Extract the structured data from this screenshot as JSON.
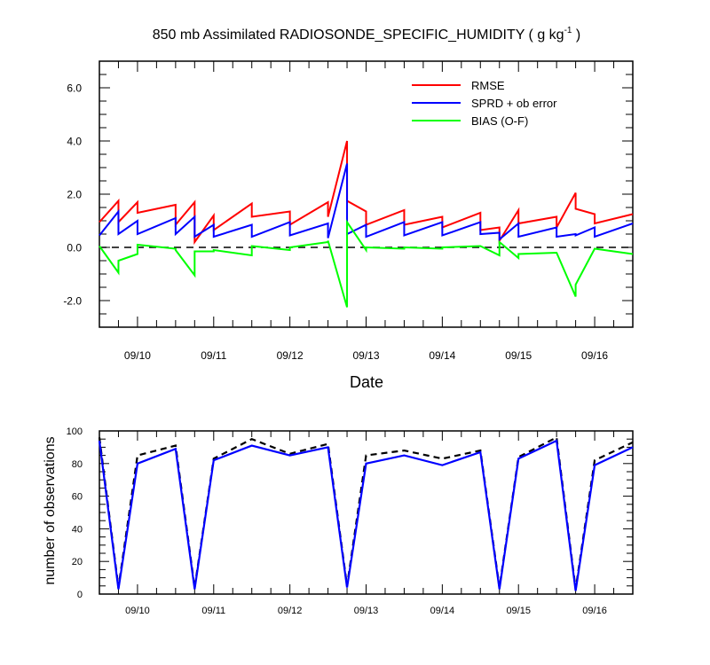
{
  "chart_data": [
    {
      "type": "line",
      "title": "850 mb Assimilated RADIOSONDE_SPECIFIC_HUMIDITY ( g kg",
      "title_units_superscript": "-1",
      "title_suffix": " )",
      "xlabel": "Date",
      "ylabel": "",
      "ylim": [
        -3,
        7
      ],
      "xlim": [
        9.5,
        16.5
      ],
      "x_tick_labels": [
        "09/10",
        "09/11",
        "09/12",
        "09/13",
        "09/14",
        "09/15",
        "09/16"
      ],
      "y_tick_labels": [
        "-2.0",
        "0.0",
        "2.0",
        "4.0",
        "6.0"
      ],
      "y_ticks": [
        -2,
        0,
        2,
        4,
        6
      ],
      "zero_line": "dashed black",
      "legend_placement": "top-right",
      "series": [
        {
          "name": "RMSE",
          "color": "#ff0000",
          "points": [
            [
              9.5,
              0.95
            ],
            [
              9.75,
              1.75
            ],
            [
              9.75,
              0.95
            ],
            [
              10,
              1.7
            ],
            [
              10,
              1.3
            ],
            [
              10.5,
              1.6
            ],
            [
              10.5,
              0.85
            ],
            [
              10.75,
              1.7
            ],
            [
              10.75,
              0.2
            ],
            [
              11,
              1.2
            ],
            [
              11,
              0.65
            ],
            [
              11.5,
              1.65
            ],
            [
              11.5,
              1.15
            ],
            [
              12,
              1.35
            ],
            [
              12,
              0.85
            ],
            [
              12.5,
              1.7
            ],
            [
              12.5,
              1.15
            ],
            [
              12.75,
              4.0
            ],
            [
              12.75,
              1.75
            ],
            [
              13,
              1.35
            ],
            [
              13,
              0.85
            ],
            [
              13.5,
              1.4
            ],
            [
              13.5,
              0.85
            ],
            [
              14,
              1.15
            ],
            [
              14,
              0.75
            ],
            [
              14.5,
              1.3
            ],
            [
              14.5,
              0.65
            ],
            [
              14.75,
              0.75
            ],
            [
              14.75,
              0.25
            ],
            [
              15,
              1.4
            ],
            [
              15,
              0.9
            ],
            [
              15.5,
              1.15
            ],
            [
              15.5,
              0.75
            ],
            [
              15.75,
              2.05
            ],
            [
              15.75,
              1.45
            ],
            [
              16,
              1.25
            ],
            [
              16,
              0.9
            ],
            [
              16.5,
              1.25
            ]
          ]
        },
        {
          "name": "SPRD + ob error",
          "color": "#0000ff",
          "points": [
            [
              9.5,
              0.45
            ],
            [
              9.75,
              1.35
            ],
            [
              9.75,
              0.5
            ],
            [
              10,
              1.0
            ],
            [
              10,
              0.5
            ],
            [
              10.5,
              1.1
            ],
            [
              10.5,
              0.5
            ],
            [
              10.75,
              1.15
            ],
            [
              10.75,
              0.4
            ],
            [
              11,
              0.85
            ],
            [
              11,
              0.4
            ],
            [
              11.5,
              0.85
            ],
            [
              11.5,
              0.4
            ],
            [
              12,
              0.95
            ],
            [
              12,
              0.45
            ],
            [
              12.5,
              0.9
            ],
            [
              12.5,
              0.35
            ],
            [
              12.75,
              3.15
            ],
            [
              12.75,
              0.5
            ],
            [
              13,
              0.85
            ],
            [
              13,
              0.4
            ],
            [
              13.5,
              0.95
            ],
            [
              13.5,
              0.45
            ],
            [
              14,
              0.95
            ],
            [
              14,
              0.45
            ],
            [
              14.5,
              0.95
            ],
            [
              14.5,
              0.5
            ],
            [
              14.75,
              0.55
            ],
            [
              14.75,
              0.3
            ],
            [
              15,
              0.9
            ],
            [
              15,
              0.4
            ],
            [
              15.5,
              0.75
            ],
            [
              15.5,
              0.4
            ],
            [
              15.75,
              0.5
            ],
            [
              15.75,
              0.45
            ],
            [
              16,
              0.75
            ],
            [
              16,
              0.4
            ],
            [
              16.5,
              0.9
            ]
          ]
        },
        {
          "name": "BIAS (O-F)",
          "color": "#00ff00",
          "points": [
            [
              9.5,
              0.05
            ],
            [
              9.75,
              -0.95
            ],
            [
              9.75,
              -0.5
            ],
            [
              10,
              -0.25
            ],
            [
              10,
              0.1
            ],
            [
              10.5,
              -0.05
            ],
            [
              10.5,
              -0.1
            ],
            [
              10.75,
              -1.05
            ],
            [
              10.75,
              -0.15
            ],
            [
              11,
              -0.15
            ],
            [
              11,
              -0.1
            ],
            [
              11.5,
              -0.3
            ],
            [
              11.5,
              0.05
            ],
            [
              12,
              -0.1
            ],
            [
              12,
              0.0
            ],
            [
              12.5,
              0.2
            ],
            [
              12.5,
              0.25
            ],
            [
              12.75,
              -2.25
            ],
            [
              12.75,
              0.95
            ],
            [
              13,
              -0.1
            ],
            [
              13,
              0.0
            ],
            [
              13.5,
              -0.05
            ],
            [
              13.5,
              0.0
            ],
            [
              14,
              -0.05
            ],
            [
              14,
              0.0
            ],
            [
              14.5,
              0.05
            ],
            [
              14.5,
              0.05
            ],
            [
              14.75,
              -0.3
            ],
            [
              14.75,
              0.2
            ],
            [
              15,
              -0.4
            ],
            [
              15,
              -0.25
            ],
            [
              15.5,
              -0.2
            ],
            [
              15.5,
              -0.2
            ],
            [
              15.75,
              -1.85
            ],
            [
              15.75,
              -1.4
            ],
            [
              16,
              -0.05
            ],
            [
              16,
              -0.05
            ],
            [
              16.5,
              -0.25
            ]
          ]
        }
      ]
    },
    {
      "type": "line",
      "title": "",
      "xlabel": "",
      "ylabel": "number of observations",
      "ylim": [
        0,
        100
      ],
      "xlim": [
        9.5,
        16.5
      ],
      "x_tick_labels": [
        "09/10",
        "09/11",
        "09/12",
        "09/13",
        "09/14",
        "09/15",
        "09/16"
      ],
      "y_tick_labels": [
        "0",
        "20",
        "40",
        "60",
        "80",
        "100"
      ],
      "y_ticks": [
        0,
        20,
        40,
        60,
        80,
        100
      ],
      "series": [
        {
          "style": "dashed",
          "color": "#000000",
          "points": [
            [
              9.5,
              96
            ],
            [
              9.75,
              4
            ],
            [
              10,
              85
            ],
            [
              10.5,
              91
            ],
            [
              10.75,
              4
            ],
            [
              11,
              83
            ],
            [
              11.5,
              95
            ],
            [
              12,
              86
            ],
            [
              12.5,
              92
            ],
            [
              12.75,
              5
            ],
            [
              13,
              85
            ],
            [
              13.5,
              88
            ],
            [
              14,
              83
            ],
            [
              14.5,
              88
            ],
            [
              14.75,
              4
            ],
            [
              15,
              84
            ],
            [
              15.5,
              96
            ],
            [
              15.75,
              3
            ],
            [
              16,
              82
            ],
            [
              16.5,
              93
            ]
          ]
        },
        {
          "style": "solid",
          "color": "#0000ff",
          "points": [
            [
              9.5,
              94
            ],
            [
              9.75,
              3
            ],
            [
              10,
              80
            ],
            [
              10.5,
              89
            ],
            [
              10.75,
              3
            ],
            [
              11,
              82
            ],
            [
              11.5,
              91
            ],
            [
              12,
              85
            ],
            [
              12.5,
              90
            ],
            [
              12.75,
              4
            ],
            [
              13,
              80
            ],
            [
              13.5,
              85
            ],
            [
              14,
              79
            ],
            [
              14.5,
              87
            ],
            [
              14.75,
              3
            ],
            [
              15,
              83
            ],
            [
              15.5,
              94
            ],
            [
              15.75,
              2
            ],
            [
              16,
              79
            ],
            [
              16.5,
              90
            ]
          ]
        }
      ]
    }
  ]
}
